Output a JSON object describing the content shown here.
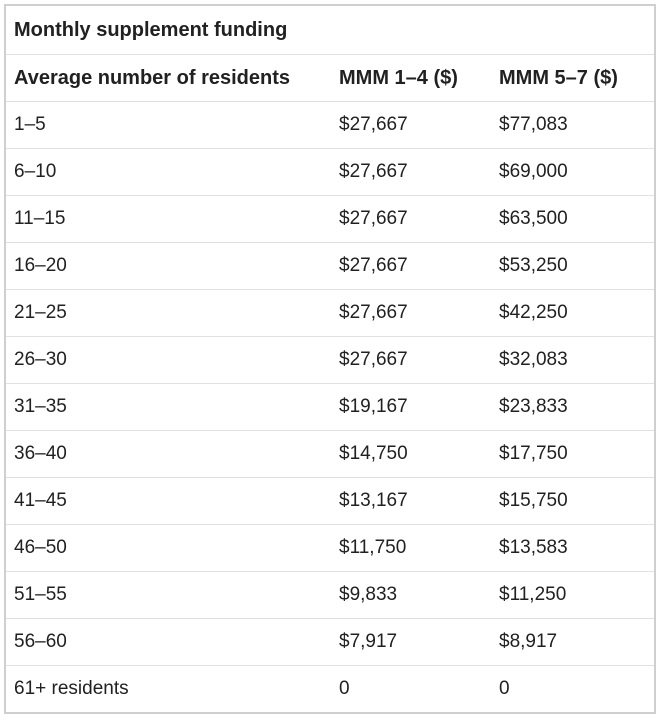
{
  "chart_data": {
    "type": "table",
    "title": "Monthly supplement funding",
    "columns": [
      "Average number of residents",
      "MMM 1–4 ($)",
      "MMM 5–7 ($)"
    ],
    "rows": [
      [
        "1–5",
        "$27,667",
        "$77,083"
      ],
      [
        "6–10",
        "$27,667",
        "$69,000"
      ],
      [
        "11–15",
        "$27,667",
        "$63,500"
      ],
      [
        "16–20",
        "$27,667",
        "$53,250"
      ],
      [
        "21–25",
        "$27,667",
        "$42,250"
      ],
      [
        "26–30",
        "$27,667",
        "$32,083"
      ],
      [
        "31–35",
        "$19,167",
        "$23,833"
      ],
      [
        "36–40",
        "$14,750",
        "$17,750"
      ],
      [
        "41–45",
        "$13,167",
        "$15,750"
      ],
      [
        "46–50",
        "$11,750",
        "$13,583"
      ],
      [
        "51–55",
        "$9,833",
        "$11,250"
      ],
      [
        "56–60",
        "$7,917",
        "$8,917"
      ],
      [
        "61+ residents",
        "0",
        "0"
      ]
    ]
  },
  "colors": {
    "background": "#ffffff",
    "text": "#212121",
    "outer_border": "#cfcfcf",
    "row_border": "#e1e1e1"
  }
}
